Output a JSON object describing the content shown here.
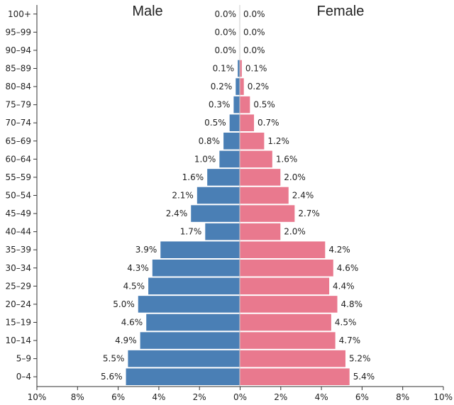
{
  "chart_data": {
    "type": "bar",
    "orientation": "horizontal-population-pyramid",
    "title_left": "Male",
    "title_right": "Female",
    "categories": [
      "100+",
      "95–99",
      "90–94",
      "85–89",
      "80–84",
      "75–79",
      "70–74",
      "65–69",
      "60–64",
      "55–59",
      "50–54",
      "45–49",
      "40–44",
      "35–39",
      "30–34",
      "25–29",
      "20–24",
      "15–19",
      "10–14",
      "5–9",
      "0–4"
    ],
    "series": [
      {
        "name": "Male",
        "color": "#4a7fb5",
        "values": [
          0.0,
          0.0,
          0.0,
          0.1,
          0.2,
          0.3,
          0.5,
          0.8,
          1.0,
          1.6,
          2.1,
          2.4,
          1.7,
          3.9,
          4.3,
          4.5,
          5.0,
          4.6,
          4.9,
          5.5,
          5.6
        ],
        "labels": [
          "0.0%",
          "0.0%",
          "0.0%",
          "0.1%",
          "0.2%",
          "0.3%",
          "0.5%",
          "0.8%",
          "1.0%",
          "1.6%",
          "2.1%",
          "2.4%",
          "1.7%",
          "3.9%",
          "4.3%",
          "4.5%",
          "5.0%",
          "4.6%",
          "4.9%",
          "5.5%",
          "5.6%"
        ]
      },
      {
        "name": "Female",
        "color": "#e9798e",
        "values": [
          0.0,
          0.0,
          0.0,
          0.1,
          0.2,
          0.5,
          0.7,
          1.2,
          1.6,
          2.0,
          2.4,
          2.7,
          2.0,
          4.2,
          4.6,
          4.4,
          4.8,
          4.5,
          4.7,
          5.2,
          5.4
        ],
        "labels": [
          "0.0%",
          "0.0%",
          "0.0%",
          "0.1%",
          "0.2%",
          "0.5%",
          "0.7%",
          "1.2%",
          "1.6%",
          "2.0%",
          "2.4%",
          "2.7%",
          "2.0%",
          "4.2%",
          "4.6%",
          "4.4%",
          "4.8%",
          "4.5%",
          "4.7%",
          "5.2%",
          "5.4%"
        ]
      }
    ],
    "x_ticks": [
      "10%",
      "8%",
      "6%",
      "4%",
      "2%",
      "0%",
      "2%",
      "4%",
      "6%",
      "8%",
      "10%"
    ],
    "xlim": [
      -10,
      10
    ],
    "xlabel": "",
    "ylabel": "",
    "grid": false
  }
}
